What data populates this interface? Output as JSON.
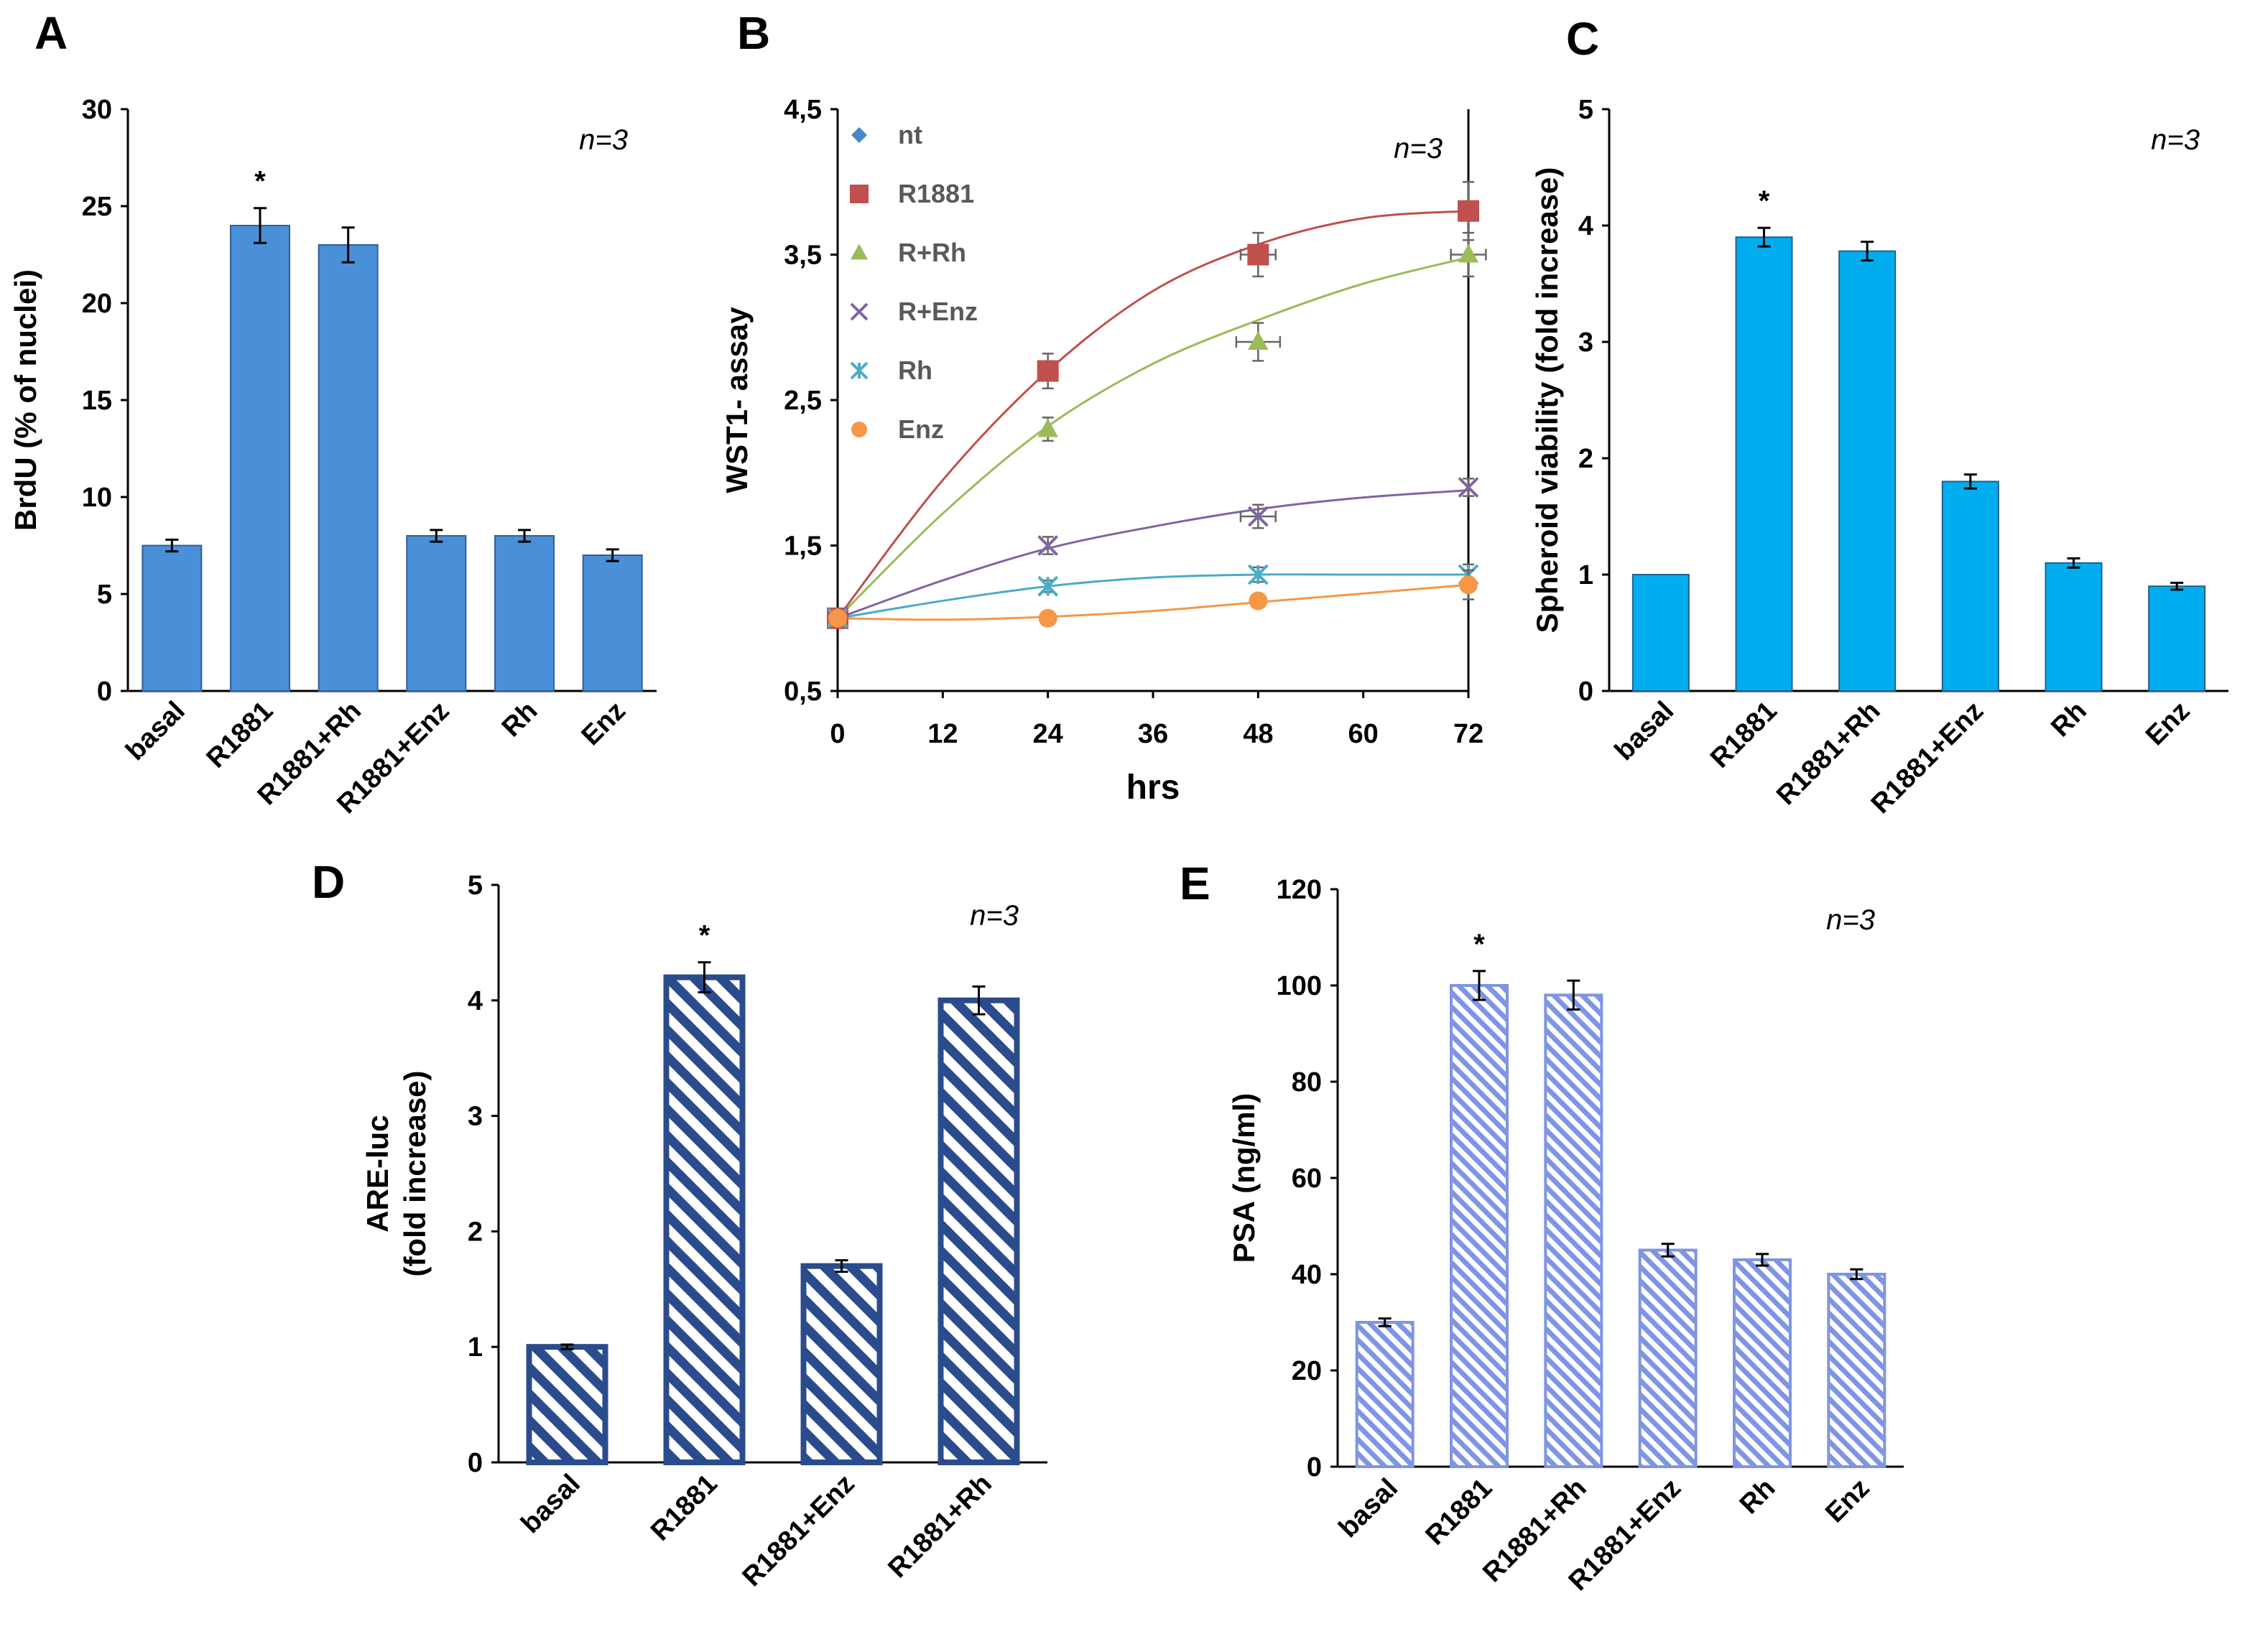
{
  "colors": {
    "panelA": "#4a90d9",
    "panelA_edge": "#2f5f9a",
    "panelC": "#00aeef",
    "panelC_edge": "#1f5f8f",
    "panelD": "#2b4c8c",
    "panelE": "#7f95e3",
    "nt": "#4a86c8",
    "R1881": "#c0504d",
    "R+Rh": "#9bbb59",
    "R+Enz": "#8064a2",
    "Rh": "#4bacc6",
    "Enz": "#f79646"
  },
  "chart_data": [
    {
      "id": "A",
      "type": "bar",
      "panel_label": "A",
      "ylabel": "BrdU (% of nuclei)",
      "ylim": [
        0,
        30
      ],
      "yticks": [
        0,
        5,
        10,
        15,
        20,
        25,
        30
      ],
      "annotation": "n=3",
      "categories": [
        "basal",
        "R1881",
        "R1881+Rh",
        "R1881+Enz",
        "Rh",
        "Enz"
      ],
      "values": [
        7.5,
        24,
        23,
        8,
        8,
        7
      ],
      "errors": [
        0.3,
        0.9,
        0.9,
        0.3,
        0.3,
        0.3
      ],
      "stars": [
        "",
        "*",
        "",
        "",
        "",
        ""
      ]
    },
    {
      "id": "B",
      "type": "line",
      "panel_label": "B",
      "xlabel": "hrs",
      "ylabel": "WST1- assay",
      "ylim": [
        0.5,
        4.5
      ],
      "yticks": [
        "0,5",
        "1,5",
        "2,5",
        "3,5",
        "4,5"
      ],
      "xlim": [
        0,
        72
      ],
      "xticks": [
        "0",
        "12",
        "24",
        "36",
        "48",
        "60",
        "72"
      ],
      "annotation": "n=3",
      "series": [
        {
          "name": "nt",
          "marker": "diamond",
          "x": [
            0
          ],
          "y": [
            1.0
          ],
          "xerr": [
            0
          ],
          "yerr": [
            0
          ]
        },
        {
          "name": "R1881",
          "marker": "square",
          "x": [
            0,
            24,
            48,
            72
          ],
          "y": [
            1.0,
            2.7,
            3.5,
            3.8
          ],
          "xerr": [
            0,
            0,
            2,
            0
          ],
          "yerr": [
            0,
            0.12,
            0.15,
            0.2
          ]
        },
        {
          "name": "R+Rh",
          "marker": "triangle",
          "x": [
            0,
            24,
            48,
            72
          ],
          "y": [
            1.0,
            2.3,
            2.9,
            3.5
          ],
          "xerr": [
            0,
            0,
            2.5,
            2
          ],
          "yerr": [
            0,
            0.08,
            0.13,
            0.15
          ]
        },
        {
          "name": "R+Enz",
          "marker": "x",
          "x": [
            0,
            24,
            48,
            72
          ],
          "y": [
            1.0,
            1.5,
            1.7,
            1.9
          ],
          "xerr": [
            0,
            0,
            2,
            0
          ],
          "yerr": [
            0,
            0.06,
            0.08,
            0.06
          ]
        },
        {
          "name": "Rh",
          "marker": "star",
          "x": [
            0,
            24,
            48,
            72
          ],
          "y": [
            1.0,
            1.22,
            1.3,
            1.3
          ],
          "xerr": [
            0,
            0,
            0,
            0
          ],
          "yerr": [
            0,
            0.04,
            0.05,
            0.07
          ]
        },
        {
          "name": "Enz",
          "marker": "circle",
          "x": [
            0,
            24,
            48,
            72
          ],
          "y": [
            1.0,
            1.0,
            1.12,
            1.23
          ],
          "xerr": [
            0,
            0,
            0,
            0
          ],
          "yerr": [
            0,
            0.03,
            0.04,
            0.1
          ]
        }
      ],
      "fit_curves": [
        {
          "name": "R1881",
          "x": [
            0,
            12,
            24,
            36,
            48,
            60,
            72
          ],
          "y": [
            1.0,
            1.95,
            2.7,
            3.25,
            3.57,
            3.75,
            3.8
          ]
        },
        {
          "name": "R+Rh",
          "x": [
            0,
            12,
            24,
            36,
            48,
            60,
            72
          ],
          "y": [
            1.0,
            1.72,
            2.32,
            2.75,
            3.05,
            3.3,
            3.48
          ]
        },
        {
          "name": "R+Enz",
          "x": [
            0,
            12,
            24,
            36,
            48,
            60,
            72
          ],
          "y": [
            1.0,
            1.26,
            1.48,
            1.63,
            1.75,
            1.83,
            1.88
          ]
        },
        {
          "name": "Rh",
          "x": [
            0,
            12,
            24,
            36,
            48,
            60,
            72
          ],
          "y": [
            1.0,
            1.12,
            1.22,
            1.28,
            1.3,
            1.3,
            1.3
          ]
        },
        {
          "name": "Enz",
          "x": [
            0,
            12,
            24,
            36,
            48,
            60,
            72
          ],
          "y": [
            1.0,
            0.99,
            1.01,
            1.05,
            1.11,
            1.17,
            1.23
          ]
        }
      ]
    },
    {
      "id": "C",
      "type": "bar",
      "panel_label": "C",
      "ylabel": "Spheroid viability (fold increase)",
      "ylim": [
        0,
        5
      ],
      "yticks": [
        0,
        1,
        2,
        3,
        4,
        5
      ],
      "annotation": "n=3",
      "categories": [
        "basal",
        "R1881",
        "R1881+Rh",
        "R1881+Enz",
        "Rh",
        "Enz"
      ],
      "values": [
        1.0,
        3.9,
        3.78,
        1.8,
        1.1,
        0.9
      ],
      "errors": [
        0,
        0.08,
        0.08,
        0.06,
        0.04,
        0.03
      ],
      "stars": [
        "",
        "*",
        "",
        "",
        "",
        ""
      ]
    },
    {
      "id": "D",
      "type": "bar",
      "panel_label": "D",
      "ylabel": "ARE-luc",
      "ylabel2": "(fold increase)",
      "ylim": [
        0,
        5
      ],
      "yticks": [
        0,
        1,
        2,
        3,
        4,
        5
      ],
      "annotation": "n=3",
      "categories": [
        "basal",
        "R1881",
        "R1881+Enz",
        "R1881+Rh"
      ],
      "values": [
        1.0,
        4.2,
        1.7,
        4.0
      ],
      "errors": [
        0.02,
        0.13,
        0.05,
        0.12
      ],
      "stars": [
        "",
        "*",
        "",
        ""
      ]
    },
    {
      "id": "E",
      "type": "bar",
      "panel_label": "E",
      "ylabel": "PSA (ng/ml)",
      "ylim": [
        0,
        120
      ],
      "yticks": [
        0,
        20,
        40,
        60,
        80,
        100,
        120
      ],
      "annotation": "n=3",
      "categories": [
        "basal",
        "R1881",
        "R1881+Rh",
        "R1881+Enz",
        "Rh",
        "Enz"
      ],
      "values": [
        30,
        100,
        98,
        45,
        43,
        40
      ],
      "errors": [
        0.8,
        3.0,
        3.0,
        1.3,
        1.2,
        1.0
      ],
      "stars": [
        "",
        "*",
        "",
        "",
        "",
        ""
      ]
    }
  ]
}
